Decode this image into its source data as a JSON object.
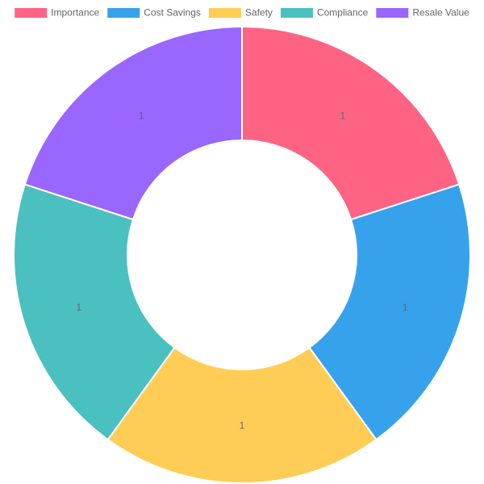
{
  "chart_data": {
    "type": "doughnut",
    "categories": [
      "Importance",
      "Cost Savings",
      "Safety",
      "Compliance",
      "Resale Value"
    ],
    "values": [
      1,
      1,
      1,
      1,
      1
    ],
    "colors": [
      "#ff6384",
      "#36a2eb",
      "#ffcd56",
      "#4bc0c0",
      "#9966ff"
    ],
    "legend": "top"
  }
}
